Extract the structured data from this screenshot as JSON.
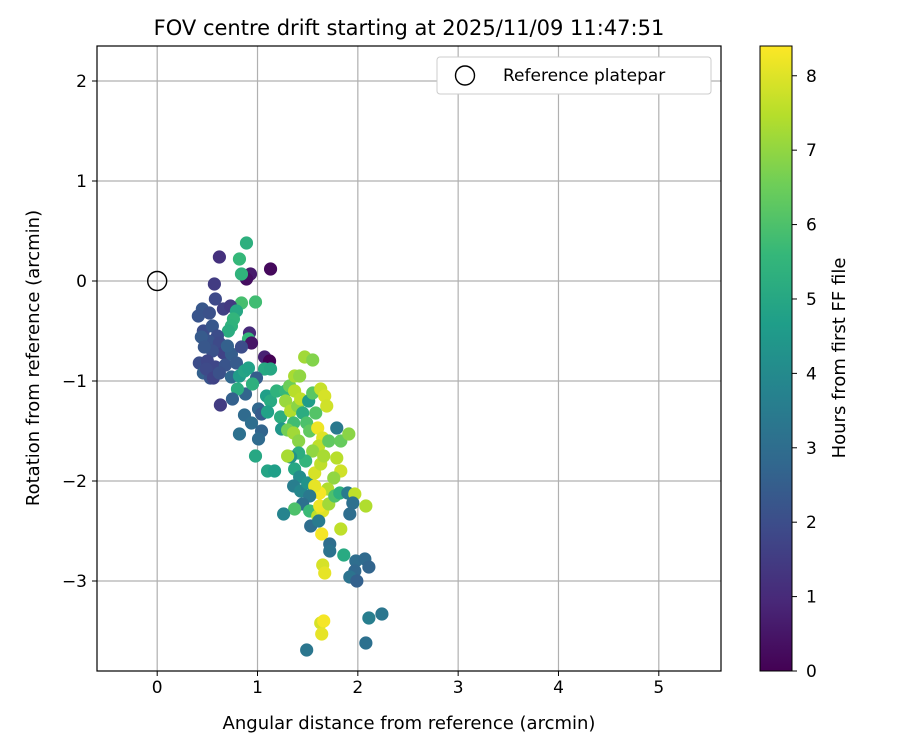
{
  "chart_data": {
    "type": "scatter",
    "title": "FOV centre drift starting at 2025/11/09 11:47:51",
    "xlabel": "Angular distance from reference (arcmin)",
    "ylabel": "Rotation from reference (arcmin)",
    "xlim": [
      -0.6,
      5.62
    ],
    "ylim": [
      -3.9,
      2.35
    ],
    "xticks": [
      0,
      1,
      2,
      3,
      4,
      5
    ],
    "yticks": [
      -3,
      -2,
      -1,
      0,
      1,
      2
    ],
    "xtick_labels": [
      "0",
      "1",
      "2",
      "3",
      "4",
      "5"
    ],
    "ytick_labels": [
      "−3",
      "−2",
      "−1",
      "0",
      "1",
      "2"
    ],
    "grid": true,
    "legend": {
      "position": "top-right",
      "entries": [
        "Reference platepar"
      ]
    },
    "reference_point": {
      "x": 0,
      "y": 0,
      "label": "Reference platepar"
    },
    "colorbar": {
      "label": "Hours from first FF file",
      "range": [
        0,
        8.4
      ],
      "ticks": [
        0,
        1,
        2,
        3,
        4,
        5,
        6,
        7,
        8
      ],
      "tick_labels": [
        "0",
        "1",
        "2",
        "3",
        "4",
        "5",
        "6",
        "7",
        "8"
      ],
      "colormap": "viridis",
      "stops": [
        "#440154",
        "#482878",
        "#3e4989",
        "#31688e",
        "#26828e",
        "#1f9e89",
        "#35b779",
        "#6ece58",
        "#b5de2b",
        "#fde725"
      ]
    },
    "points": [
      {
        "x": 0.62,
        "y": 0.24,
        "h": 1.2
      },
      {
        "x": 0.93,
        "y": 0.07,
        "h": 0.6
      },
      {
        "x": 1.13,
        "y": 0.12,
        "h": 0.2
      },
      {
        "x": 0.89,
        "y": 0.02,
        "h": 0.3
      },
      {
        "x": 0.57,
        "y": -0.03,
        "h": 1.5
      },
      {
        "x": 0.89,
        "y": 0.38,
        "h": 5.3
      },
      {
        "x": 0.82,
        "y": 0.22,
        "h": 5.6
      },
      {
        "x": 0.84,
        "y": 0.07,
        "h": 5.4
      },
      {
        "x": 0.84,
        "y": -0.22,
        "h": 5.9
      },
      {
        "x": 0.98,
        "y": -0.21,
        "h": 5.8
      },
      {
        "x": 0.58,
        "y": -0.18,
        "h": 1.9
      },
      {
        "x": 0.45,
        "y": -0.28,
        "h": 2.3
      },
      {
        "x": 0.41,
        "y": -0.35,
        "h": 2.2
      },
      {
        "x": 0.52,
        "y": -0.32,
        "h": 2.1
      },
      {
        "x": 0.66,
        "y": -0.28,
        "h": 1.6
      },
      {
        "x": 0.73,
        "y": -0.25,
        "h": 1.4
      },
      {
        "x": 0.79,
        "y": -0.3,
        "h": 5.0
      },
      {
        "x": 0.76,
        "y": -0.38,
        "h": 5.5
      },
      {
        "x": 0.74,
        "y": -0.45,
        "h": 5.4
      },
      {
        "x": 0.71,
        "y": -0.5,
        "h": 5.2
      },
      {
        "x": 0.46,
        "y": -0.5,
        "h": 2.0
      },
      {
        "x": 0.55,
        "y": -0.45,
        "h": 2.3
      },
      {
        "x": 0.6,
        "y": -0.55,
        "h": 2.0
      },
      {
        "x": 0.51,
        "y": -0.6,
        "h": 2.2
      },
      {
        "x": 0.44,
        "y": -0.56,
        "h": 2.4
      },
      {
        "x": 0.62,
        "y": -0.62,
        "h": 1.9
      },
      {
        "x": 0.66,
        "y": -0.72,
        "h": 1.7
      },
      {
        "x": 0.55,
        "y": -0.7,
        "h": 2.1
      },
      {
        "x": 0.47,
        "y": -0.66,
        "h": 2.3
      },
      {
        "x": 0.42,
        "y": -0.82,
        "h": 2.0
      },
      {
        "x": 0.5,
        "y": -0.8,
        "h": 1.8
      },
      {
        "x": 0.58,
        "y": -0.86,
        "h": 1.8
      },
      {
        "x": 0.68,
        "y": -0.84,
        "h": 2.2
      },
      {
        "x": 0.74,
        "y": -0.73,
        "h": 2.5
      },
      {
        "x": 0.7,
        "y": -0.65,
        "h": 2.6
      },
      {
        "x": 0.79,
        "y": -0.82,
        "h": 2.4
      },
      {
        "x": 0.46,
        "y": -0.92,
        "h": 2.6
      },
      {
        "x": 0.53,
        "y": -0.97,
        "h": 2.2
      },
      {
        "x": 0.49,
        "y": -0.88,
        "h": 1.9
      },
      {
        "x": 0.56,
        "y": -0.97,
        "h": 1.7
      },
      {
        "x": 0.62,
        "y": -0.92,
        "h": 2.1
      },
      {
        "x": 0.74,
        "y": -0.96,
        "h": 2.8
      },
      {
        "x": 0.82,
        "y": -0.95,
        "h": 4.6
      },
      {
        "x": 0.87,
        "y": -0.9,
        "h": 4.9
      },
      {
        "x": 0.91,
        "y": -0.87,
        "h": 4.8
      },
      {
        "x": 0.92,
        "y": -0.52,
        "h": 1.0
      },
      {
        "x": 0.91,
        "y": -0.58,
        "h": 5.6
      },
      {
        "x": 0.94,
        "y": -0.62,
        "h": 0.5
      },
      {
        "x": 0.84,
        "y": -0.66,
        "h": 2.0
      },
      {
        "x": 1.07,
        "y": -0.76,
        "h": 0.8
      },
      {
        "x": 1.12,
        "y": -0.8,
        "h": 0.0
      },
      {
        "x": 1.07,
        "y": -0.88,
        "h": 5.1
      },
      {
        "x": 1.13,
        "y": -0.88,
        "h": 5.0
      },
      {
        "x": 0.99,
        "y": -0.97,
        "h": 2.5
      },
      {
        "x": 0.88,
        "y": -1.13,
        "h": 2.7
      },
      {
        "x": 0.95,
        "y": -1.03,
        "h": 5.3
      },
      {
        "x": 0.8,
        "y": -1.08,
        "h": 5.2
      },
      {
        "x": 0.75,
        "y": -1.18,
        "h": 2.6
      },
      {
        "x": 0.63,
        "y": -1.24,
        "h": 1.5
      },
      {
        "x": 1.09,
        "y": -1.15,
        "h": 4.7
      },
      {
        "x": 1.13,
        "y": -1.2,
        "h": 5.1
      },
      {
        "x": 1.19,
        "y": -1.1,
        "h": 5.4
      },
      {
        "x": 1.01,
        "y": -1.28,
        "h": 2.8
      },
      {
        "x": 0.87,
        "y": -1.34,
        "h": 2.9
      },
      {
        "x": 0.94,
        "y": -1.42,
        "h": 3.0
      },
      {
        "x": 1.04,
        "y": -1.33,
        "h": 2.4
      },
      {
        "x": 1.1,
        "y": -1.31,
        "h": 4.8
      },
      {
        "x": 1.23,
        "y": -1.36,
        "h": 5.2
      },
      {
        "x": 1.04,
        "y": -1.5,
        "h": 2.7
      },
      {
        "x": 1.01,
        "y": -1.58,
        "h": 2.9
      },
      {
        "x": 0.82,
        "y": -1.53,
        "h": 3.1
      },
      {
        "x": 0.98,
        "y": -1.75,
        "h": 5.0
      },
      {
        "x": 1.1,
        "y": -1.9,
        "h": 4.9
      },
      {
        "x": 1.17,
        "y": -1.9,
        "h": 4.7
      },
      {
        "x": 1.24,
        "y": -1.48,
        "h": 4.4
      },
      {
        "x": 1.28,
        "y": -1.1,
        "h": 5.6
      },
      {
        "x": 1.32,
        "y": -1.05,
        "h": 6.5
      },
      {
        "x": 1.37,
        "y": -0.95,
        "h": 7.3
      },
      {
        "x": 1.42,
        "y": -0.95,
        "h": 7.0
      },
      {
        "x": 1.47,
        "y": -0.76,
        "h": 7.2
      },
      {
        "x": 1.55,
        "y": -0.79,
        "h": 6.8
      },
      {
        "x": 1.28,
        "y": -1.2,
        "h": 7.1
      },
      {
        "x": 1.33,
        "y": -1.3,
        "h": 7.4
      },
      {
        "x": 1.4,
        "y": -1.25,
        "h": 6.9
      },
      {
        "x": 1.37,
        "y": -1.1,
        "h": 7.5
      },
      {
        "x": 1.43,
        "y": -1.18,
        "h": 7.6
      },
      {
        "x": 1.36,
        "y": -1.42,
        "h": 5.8
      },
      {
        "x": 1.45,
        "y": -1.32,
        "h": 5.2
      },
      {
        "x": 1.51,
        "y": -1.2,
        "h": 4.6
      },
      {
        "x": 1.55,
        "y": -1.12,
        "h": 6.2
      },
      {
        "x": 1.49,
        "y": -1.42,
        "h": 6.0
      },
      {
        "x": 1.3,
        "y": -1.49,
        "h": 6.6
      },
      {
        "x": 1.36,
        "y": -1.52,
        "h": 7.2
      },
      {
        "x": 1.41,
        "y": -1.6,
        "h": 6.9
      },
      {
        "x": 1.52,
        "y": -1.5,
        "h": 6.3
      },
      {
        "x": 1.58,
        "y": -1.32,
        "h": 6.1
      },
      {
        "x": 1.63,
        "y": -1.08,
        "h": 7.7
      },
      {
        "x": 1.67,
        "y": -1.15,
        "h": 7.9
      },
      {
        "x": 1.69,
        "y": -1.25,
        "h": 7.8
      },
      {
        "x": 1.6,
        "y": -1.47,
        "h": 8.2
      },
      {
        "x": 1.65,
        "y": -1.57,
        "h": 8.0
      },
      {
        "x": 1.61,
        "y": -1.65,
        "h": 7.6
      },
      {
        "x": 1.55,
        "y": -1.7,
        "h": 7.0
      },
      {
        "x": 1.48,
        "y": -1.8,
        "h": 5.5
      },
      {
        "x": 1.41,
        "y": -1.72,
        "h": 5.2
      },
      {
        "x": 1.33,
        "y": -1.76,
        "h": 4.3
      },
      {
        "x": 1.3,
        "y": -1.75,
        "h": 7.3
      },
      {
        "x": 1.37,
        "y": -1.88,
        "h": 5.0
      },
      {
        "x": 1.42,
        "y": -1.96,
        "h": 4.1
      },
      {
        "x": 1.36,
        "y": -2.05,
        "h": 3.6
      },
      {
        "x": 1.43,
        "y": -2.1,
        "h": 3.9
      },
      {
        "x": 1.5,
        "y": -2.02,
        "h": 4.3
      },
      {
        "x": 1.57,
        "y": -1.92,
        "h": 7.9
      },
      {
        "x": 1.63,
        "y": -1.83,
        "h": 7.6
      },
      {
        "x": 1.66,
        "y": -1.75,
        "h": 7.3
      },
      {
        "x": 1.71,
        "y": -1.6,
        "h": 6.3
      },
      {
        "x": 1.79,
        "y": -1.47,
        "h": 3.4
      },
      {
        "x": 1.83,
        "y": -1.6,
        "h": 6.4
      },
      {
        "x": 1.91,
        "y": -1.53,
        "h": 6.9
      },
      {
        "x": 1.79,
        "y": -1.77,
        "h": 7.5
      },
      {
        "x": 1.83,
        "y": -1.9,
        "h": 7.8
      },
      {
        "x": 1.76,
        "y": -1.97,
        "h": 7.0
      },
      {
        "x": 1.7,
        "y": -2.08,
        "h": 7.4
      },
      {
        "x": 1.62,
        "y": -2.12,
        "h": 8.3
      },
      {
        "x": 1.57,
        "y": -2.05,
        "h": 8.1
      },
      {
        "x": 1.52,
        "y": -2.15,
        "h": 3.4
      },
      {
        "x": 1.45,
        "y": -2.23,
        "h": 3.1
      },
      {
        "x": 1.37,
        "y": -2.28,
        "h": 6.0
      },
      {
        "x": 1.26,
        "y": -2.33,
        "h": 3.8
      },
      {
        "x": 1.52,
        "y": -2.3,
        "h": 5.7
      },
      {
        "x": 1.6,
        "y": -2.35,
        "h": 7.6
      },
      {
        "x": 1.65,
        "y": -2.3,
        "h": 8.0
      },
      {
        "x": 1.62,
        "y": -2.25,
        "h": 8.2
      },
      {
        "x": 1.71,
        "y": -2.23,
        "h": 7.2
      },
      {
        "x": 1.77,
        "y": -2.15,
        "h": 6.0
      },
      {
        "x": 1.82,
        "y": -2.12,
        "h": 5.3
      },
      {
        "x": 1.9,
        "y": -2.12,
        "h": 3.5
      },
      {
        "x": 1.97,
        "y": -2.13,
        "h": 7.6
      },
      {
        "x": 1.95,
        "y": -2.22,
        "h": 3.1
      },
      {
        "x": 1.92,
        "y": -2.33,
        "h": 3.0
      },
      {
        "x": 2.08,
        "y": -2.25,
        "h": 7.4
      },
      {
        "x": 1.83,
        "y": -2.48,
        "h": 7.6
      },
      {
        "x": 1.53,
        "y": -2.45,
        "h": 3.0
      },
      {
        "x": 1.61,
        "y": -2.4,
        "h": 3.5
      },
      {
        "x": 1.64,
        "y": -2.53,
        "h": 8.3
      },
      {
        "x": 1.72,
        "y": -2.63,
        "h": 3.0
      },
      {
        "x": 1.72,
        "y": -2.7,
        "h": 3.2
      },
      {
        "x": 1.86,
        "y": -2.74,
        "h": 5.1
      },
      {
        "x": 1.65,
        "y": -2.84,
        "h": 7.9
      },
      {
        "x": 1.67,
        "y": -2.92,
        "h": 8.1
      },
      {
        "x": 1.98,
        "y": -2.8,
        "h": 3.0
      },
      {
        "x": 2.07,
        "y": -2.78,
        "h": 2.9
      },
      {
        "x": 1.97,
        "y": -2.9,
        "h": 2.8
      },
      {
        "x": 2.11,
        "y": -2.86,
        "h": 2.7
      },
      {
        "x": 1.92,
        "y": -2.96,
        "h": 3.2
      },
      {
        "x": 1.99,
        "y": -3.0,
        "h": 2.6
      },
      {
        "x": 2.11,
        "y": -3.37,
        "h": 3.6
      },
      {
        "x": 2.24,
        "y": -3.33,
        "h": 3.3
      },
      {
        "x": 1.63,
        "y": -3.42,
        "h": 7.9
      },
      {
        "x": 1.66,
        "y": -3.4,
        "h": 8.3
      },
      {
        "x": 1.64,
        "y": -3.53,
        "h": 8.1
      },
      {
        "x": 2.08,
        "y": -3.62,
        "h": 3.1
      },
      {
        "x": 1.49,
        "y": -3.69,
        "h": 3.3
      }
    ]
  }
}
